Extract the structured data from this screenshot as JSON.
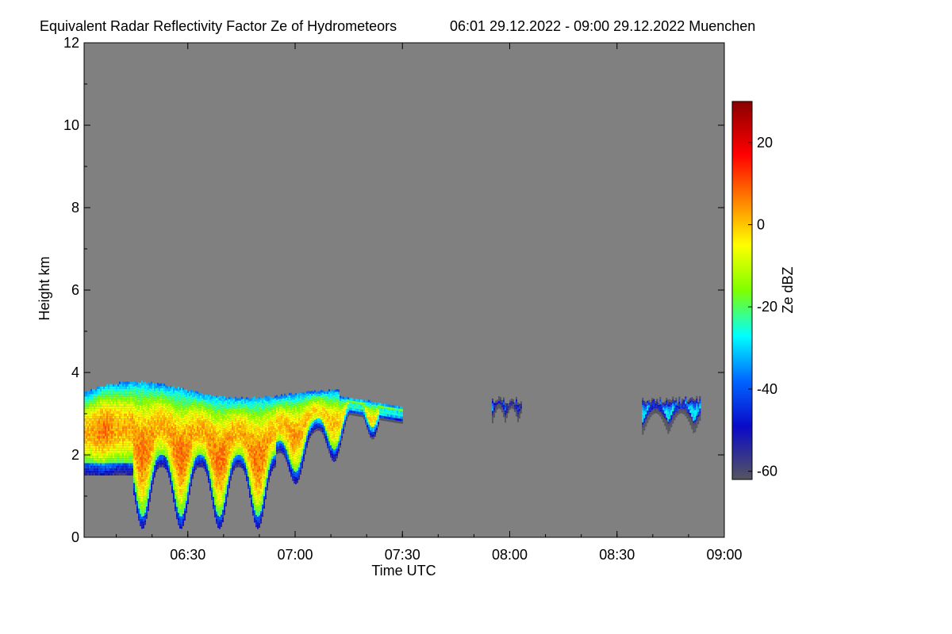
{
  "chart_data": {
    "type": "heatmap",
    "title": "Equivalent Radar Reflectivity Factor Ze of Hydrometeors",
    "subtitle": "06:01 29.12.2022 - 09:00 29.12.2022 Muenchen",
    "xlabel": "Time UTC",
    "ylabel": "Height km",
    "colorbar_label": "Ze dBZ",
    "x_range": [
      "06:01",
      "09:00"
    ],
    "y_range": [
      0,
      12
    ],
    "color_range": [
      -62,
      30
    ],
    "x_ticks": [
      "06:30",
      "07:00",
      "07:30",
      "08:00",
      "08:30",
      "09:00"
    ],
    "y_ticks": [
      "0",
      "2",
      "4",
      "6",
      "8",
      "10",
      "12"
    ],
    "colorbar_ticks": [
      "20",
      "0",
      "-20",
      "-40",
      "-60"
    ],
    "colors": {
      "no_signal": "#808080",
      "colormap": [
        "#555560",
        "#0a0ac8",
        "#0064ff",
        "#00ffff",
        "#ffff00",
        "#ff6400",
        "#ff0000",
        "#8a0000"
      ]
    },
    "echo_regions": [
      {
        "name": "main-precipitation",
        "t_start": "06:01",
        "t_end": "07:30",
        "base_km": 0.2,
        "top_km": 3.7,
        "peak_dbz": 10
      },
      {
        "name": "thin-echo-0800",
        "t_start": "07:55",
        "t_end": "08:03",
        "base_km": 2.5,
        "top_km": 3.4,
        "peak_dbz": -30
      },
      {
        "name": "thin-echo-0845",
        "t_start": "08:37",
        "t_end": "08:53",
        "base_km": 2.1,
        "top_km": 3.4,
        "peak_dbz": -25
      }
    ]
  }
}
